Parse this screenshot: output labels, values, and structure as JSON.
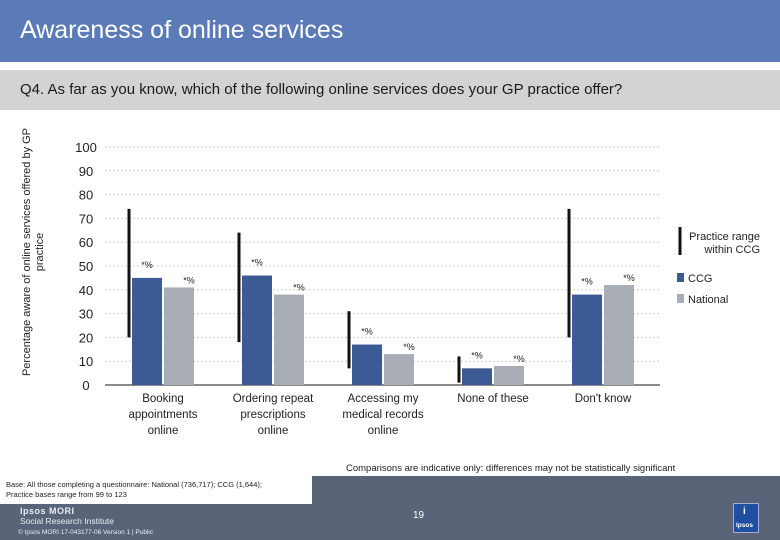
{
  "header": {
    "title": "Awareness of online services",
    "question": "Q4. As far as you know, which of the following online services does your GP practice offer?"
  },
  "chart_data": {
    "type": "bar",
    "ylabel": "Percentage aware of online services offered by GP practice",
    "ylim": [
      0,
      100
    ],
    "yticks": [
      0,
      10,
      20,
      30,
      40,
      50,
      60,
      70,
      80,
      90,
      100
    ],
    "grid": true,
    "categories": [
      {
        "id": "booking",
        "lines": [
          "Booking",
          "appointments",
          "online"
        ]
      },
      {
        "id": "ordering",
        "lines": [
          "Ordering repeat",
          "prescriptions",
          "online"
        ]
      },
      {
        "id": "records",
        "lines": [
          "Accessing my",
          "medical records",
          "online"
        ]
      },
      {
        "id": "none",
        "lines": [
          "None of these"
        ]
      },
      {
        "id": "dontknow",
        "lines": [
          "Don't know"
        ]
      }
    ],
    "series": [
      {
        "name": "CCG",
        "color": "#3c5a93",
        "values": [
          45,
          46,
          17,
          7,
          38
        ],
        "labels": [
          "*%",
          "*%",
          "*%",
          "*%",
          "*%"
        ]
      },
      {
        "name": "National",
        "color": "#a9aeb6",
        "values": [
          41,
          38,
          13,
          8,
          42
        ],
        "labels": [
          "*%",
          "*%",
          "*%",
          "*%",
          "*%"
        ]
      }
    ],
    "practice_range": {
      "name": "Practice range within CCG",
      "min": [
        20,
        18,
        7,
        1,
        20
      ],
      "max": [
        74,
        64,
        31,
        12,
        74
      ]
    },
    "legend": {
      "placement": "right",
      "range_lines": [
        "Practice range",
        "within CCG"
      ],
      "ccg": "CCG",
      "national": "National"
    }
  },
  "footnote": "Comparisons are indicative only: differences may not be statistically significant",
  "base": {
    "line1": "Base: All those completing a questionnaire: National (736,717); CCG (1,644);",
    "line2": "Practice bases range from 99 to 123"
  },
  "footer": {
    "logo_line1": "Ipsos MORI",
    "logo_line2": "Social Research Institute",
    "copyright": "© Ipsos MORI     17-043177-06 Version 1 | Public",
    "page_number": "19",
    "badge_mark": "i",
    "badge_text": "Ipsos"
  },
  "colors": {
    "title_bar": "#5b7bb8",
    "ccg": "#3c5a93",
    "national": "#a9aeb6",
    "range": "#111111"
  }
}
